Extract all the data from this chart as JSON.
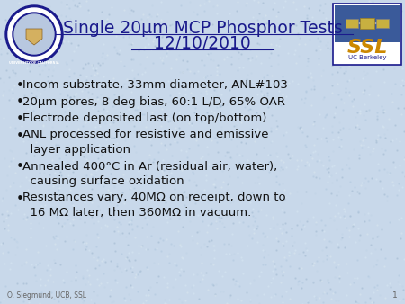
{
  "title_line1": "Single 20μm MCP Phosphor Tests",
  "title_line2": "12/10/2010",
  "title_color": "#1a1a8c",
  "title_fontsize": 13.5,
  "background_color": "#c8d8ea",
  "bullet_color": "#111111",
  "bullet_fontsize": 9.5,
  "bullets": [
    [
      "Incom substrate, 33mm diameter, ANL#103"
    ],
    [
      "20μm pores, 8 deg bias, 60:1 L/D, 65% OAR"
    ],
    [
      "Electrode deposited last (on top/bottom)"
    ],
    [
      "ANL processed for resistive and emissive",
      "  layer application"
    ],
    [
      "Annealed 400°C in Ar (residual air, water),",
      "  causing surface oxidation"
    ],
    [
      "Resistances vary, 40MΩ on receipt, down to",
      "  16 MΩ later, then 360MΩ in vacuum."
    ]
  ],
  "footer_text": "O. Siegmund, UCB, SSL",
  "footer_page": "1",
  "footer_fontsize": 5.5,
  "navy": "#1a1a8c",
  "ssl_orange": "#cc8800",
  "ssl_blue": "#1a3a7c"
}
